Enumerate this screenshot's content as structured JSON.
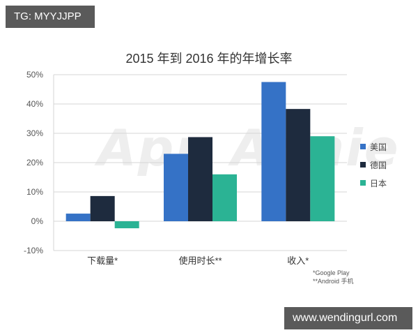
{
  "overlays": {
    "top_left_tag": "TG: MYYJJPP",
    "bottom_right_tag": "www.wendingurl.com",
    "watermark": "App Annie"
  },
  "chart_data": {
    "type": "bar",
    "title": "2015 年到 2016 年的年增长率",
    "xlabel": "",
    "ylabel": "",
    "ylim": [
      -10,
      50
    ],
    "yticks": [
      "50%",
      "40%",
      "30%",
      "20%",
      "10%",
      "0%",
      "-10%"
    ],
    "grid": true,
    "legend_position": "right",
    "categories": [
      "下载量*",
      "使用时长**",
      "收入*"
    ],
    "series": [
      {
        "name": "美国",
        "color": "#3572c6",
        "values": [
          2.6,
          23,
          47.5
        ]
      },
      {
        "name": "德国",
        "color": "#1e2b3e",
        "values": [
          8.6,
          28.7,
          38.3
        ]
      },
      {
        "name": "日本",
        "color": "#2bb394",
        "values": [
          -2.4,
          16,
          29
        ]
      }
    ],
    "footnotes": [
      "*Google Play",
      "**Android 手机"
    ]
  }
}
